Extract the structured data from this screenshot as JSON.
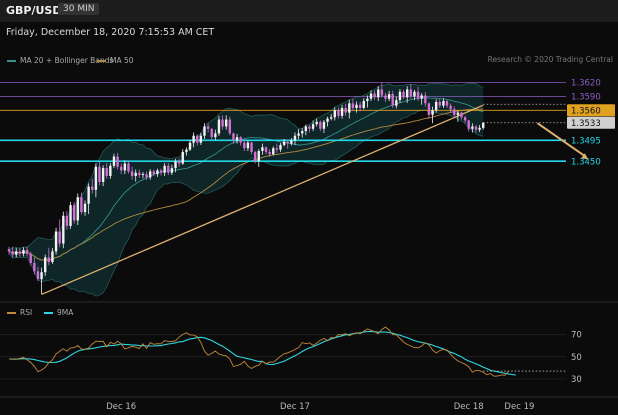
{
  "header": {
    "symbol": "GBP/USD",
    "timeframe": "30 MIN",
    "datetime": "Friday, December 18, 2020 7:15:53 AM CET"
  },
  "legend": {
    "ma_bb": "MA 20 + Bollinger Bands",
    "ma50": "MA 50",
    "rsi": "RSI",
    "ma9": "9MA"
  },
  "credit": "Research © 2020 Trading Central",
  "colors": {
    "bg": "#0b0b0b",
    "up": "#f2f2f2",
    "down": "#d46fd4",
    "bb": "#35908a",
    "ma50": "#b08a3e",
    "trend": "#e0b070",
    "support": "#23d8e8",
    "resistance": "#8a5cc4",
    "pivot": "#e0a020",
    "rsi": "#c2883c",
    "rsi_ma": "#2fd6e0"
  },
  "chart_data": [
    {
      "type": "candlestick",
      "x_ticks": [
        {
          "label": "Dec 16",
          "index": 31
        },
        {
          "label": "Dec 17",
          "index": 79
        },
        {
          "label": "Dec 18",
          "index": 127
        },
        {
          "label": "Dec 19",
          "index": 141
        }
      ],
      "ylim": [
        1.315,
        1.366
      ],
      "levels": [
        {
          "value": 1.362,
          "label": "1.3620",
          "kind": "resistance",
          "color": "#8a5cc4"
        },
        {
          "value": 1.359,
          "label": "1.3590",
          "kind": "resistance",
          "color": "#8a5cc4"
        },
        {
          "value": 1.356,
          "label": "1.3560",
          "kind": "pivot",
          "color": "#e0a020"
        },
        {
          "value": 1.3533,
          "label": "1.3533",
          "kind": "last",
          "color": "#cfcfcf"
        },
        {
          "value": 1.3495,
          "label": "1.3495",
          "kind": "support",
          "color": "#23d8e8"
        },
        {
          "value": 1.345,
          "label": "1.3450",
          "kind": "support",
          "color": "#23d8e8"
        }
      ],
      "trendline": [
        {
          "index": 9,
          "price": 1.3162
        },
        {
          "index": 131,
          "price": 1.3571
        }
      ],
      "arrow": [
        {
          "index": 146,
          "price": 1.3532
        },
        {
          "index": 160,
          "price": 1.3454
        }
      ],
      "candles": [
        [
          1.326,
          1.3265,
          1.3248,
          1.3255
        ],
        [
          1.3255,
          1.3265,
          1.3242,
          1.3248
        ],
        [
          1.3248,
          1.3262,
          1.3242,
          1.3255
        ],
        [
          1.3255,
          1.3262,
          1.3244,
          1.325
        ],
        [
          1.325,
          1.3264,
          1.3244,
          1.3258
        ],
        [
          1.3258,
          1.3266,
          1.3244,
          1.325
        ],
        [
          1.325,
          1.3254,
          1.3225,
          1.323
        ],
        [
          1.323,
          1.3242,
          1.3205,
          1.3212
        ],
        [
          1.3212,
          1.3222,
          1.3191,
          1.3195
        ],
        [
          1.3195,
          1.322,
          1.3163,
          1.321
        ],
        [
          1.321,
          1.3248,
          1.3202,
          1.3242
        ],
        [
          1.3242,
          1.3263,
          1.3225,
          1.3232
        ],
        [
          1.3232,
          1.3262,
          1.3228,
          1.3255
        ],
        [
          1.3255,
          1.3306,
          1.3248,
          1.3298
        ],
        [
          1.3298,
          1.3324,
          1.3264,
          1.3272
        ],
        [
          1.3272,
          1.3341,
          1.3262,
          1.3332
        ],
        [
          1.3332,
          1.3342,
          1.3302,
          1.331
        ],
        [
          1.331,
          1.3362,
          1.3304,
          1.3355
        ],
        [
          1.3355,
          1.3362,
          1.3315,
          1.3322
        ],
        [
          1.3322,
          1.338,
          1.3312,
          1.3372
        ],
        [
          1.3372,
          1.3382,
          1.3335,
          1.334
        ],
        [
          1.334,
          1.3365,
          1.3332,
          1.3358
        ],
        [
          1.3358,
          1.3402,
          1.3336,
          1.3395
        ],
        [
          1.3395,
          1.3412,
          1.338,
          1.3388
        ],
        [
          1.3388,
          1.3445,
          1.3372,
          1.3438
        ],
        [
          1.3438,
          1.3448,
          1.3398,
          1.3405
        ],
        [
          1.3405,
          1.3441,
          1.3396,
          1.3435
        ],
        [
          1.3435,
          1.3446,
          1.3412,
          1.3418
        ],
        [
          1.3418,
          1.3446,
          1.3412,
          1.344
        ],
        [
          1.344,
          1.3466,
          1.3435,
          1.346
        ],
        [
          1.346,
          1.3468,
          1.3432,
          1.3438
        ],
        [
          1.3438,
          1.3445,
          1.3422,
          1.343
        ],
        [
          1.343,
          1.3452,
          1.3422,
          1.3445
        ],
        [
          1.3445,
          1.345,
          1.3423,
          1.3428
        ],
        [
          1.3428,
          1.3438,
          1.341,
          1.3418
        ],
        [
          1.3418,
          1.3432,
          1.3406,
          1.3425
        ],
        [
          1.3425,
          1.3432,
          1.3414,
          1.342
        ],
        [
          1.342,
          1.3427,
          1.3413,
          1.3422
        ],
        [
          1.3422,
          1.3428,
          1.3409,
          1.3415
        ],
        [
          1.3415,
          1.3433,
          1.341,
          1.3428
        ],
        [
          1.3428,
          1.3432,
          1.3418,
          1.3422
        ],
        [
          1.3422,
          1.3434,
          1.3416,
          1.343
        ],
        [
          1.343,
          1.3434,
          1.3419,
          1.3425
        ],
        [
          1.3425,
          1.3446,
          1.3418,
          1.344
        ],
        [
          1.344,
          1.3446,
          1.342,
          1.3425
        ],
        [
          1.3425,
          1.3442,
          1.342,
          1.3435
        ],
        [
          1.3435,
          1.3455,
          1.3426,
          1.345
        ],
        [
          1.345,
          1.3455,
          1.3438,
          1.3445
        ],
        [
          1.3445,
          1.3476,
          1.3442,
          1.347
        ],
        [
          1.347,
          1.348,
          1.3462,
          1.3475
        ],
        [
          1.3475,
          1.3496,
          1.3472,
          1.349
        ],
        [
          1.349,
          1.3512,
          1.348,
          1.3505
        ],
        [
          1.3505,
          1.3508,
          1.3484,
          1.349
        ],
        [
          1.349,
          1.3511,
          1.3485,
          1.3505
        ],
        [
          1.3505,
          1.3532,
          1.3498,
          1.3525
        ],
        [
          1.3525,
          1.3532,
          1.3512,
          1.352
        ],
        [
          1.352,
          1.3521,
          1.3496,
          1.3502
        ],
        [
          1.3502,
          1.3518,
          1.3496,
          1.351
        ],
        [
          1.351,
          1.3548,
          1.3505,
          1.354
        ],
        [
          1.354,
          1.3549,
          1.3518,
          1.3525
        ],
        [
          1.3525,
          1.3549,
          1.3518,
          1.354
        ],
        [
          1.354,
          1.3546,
          1.3506,
          1.351
        ],
        [
          1.351,
          1.3512,
          1.3488,
          1.3495
        ],
        [
          1.3495,
          1.3509,
          1.3488,
          1.3502
        ],
        [
          1.3502,
          1.3504,
          1.3484,
          1.349
        ],
        [
          1.349,
          1.3496,
          1.3472,
          1.3478
        ],
        [
          1.3478,
          1.3495,
          1.3472,
          1.349
        ],
        [
          1.349,
          1.3492,
          1.3465,
          1.347
        ],
        [
          1.347,
          1.3472,
          1.3445,
          1.345
        ],
        [
          1.345,
          1.3476,
          1.3438,
          1.3472
        ],
        [
          1.3472,
          1.3488,
          1.3464,
          1.348
        ],
        [
          1.348,
          1.3482,
          1.3465,
          1.347
        ],
        [
          1.347,
          1.3476,
          1.3459,
          1.3465
        ],
        [
          1.3465,
          1.3482,
          1.3462,
          1.3478
        ],
        [
          1.3478,
          1.3488,
          1.3468,
          1.3475
        ],
        [
          1.3475,
          1.3489,
          1.347,
          1.3485
        ],
        [
          1.3485,
          1.3498,
          1.3482,
          1.3492
        ],
        [
          1.3492,
          1.3494,
          1.3477,
          1.3488
        ],
        [
          1.3488,
          1.35,
          1.3484,
          1.3495
        ],
        [
          1.3495,
          1.3512,
          1.3485,
          1.3505
        ],
        [
          1.3505,
          1.3519,
          1.3498,
          1.351
        ],
        [
          1.351,
          1.3521,
          1.3501,
          1.3515
        ],
        [
          1.3515,
          1.3529,
          1.3506,
          1.3525
        ],
        [
          1.3525,
          1.3528,
          1.3512,
          1.352
        ],
        [
          1.352,
          1.3538,
          1.3515,
          1.353
        ],
        [
          1.353,
          1.3542,
          1.3525,
          1.3535
        ],
        [
          1.3535,
          1.3538,
          1.3515,
          1.352
        ],
        [
          1.352,
          1.3539,
          1.3511,
          1.3535
        ],
        [
          1.3535,
          1.3546,
          1.3525,
          1.3542
        ],
        [
          1.3542,
          1.3552,
          1.3538,
          1.3545
        ],
        [
          1.3545,
          1.3566,
          1.3538,
          1.356
        ],
        [
          1.356,
          1.3566,
          1.3542,
          1.3548
        ],
        [
          1.3548,
          1.3572,
          1.3542,
          1.3565
        ],
        [
          1.3565,
          1.3574,
          1.3548,
          1.3555
        ],
        [
          1.3555,
          1.3583,
          1.3542,
          1.3575
        ],
        [
          1.3575,
          1.3585,
          1.3558,
          1.3565
        ],
        [
          1.3565,
          1.3579,
          1.3555,
          1.3572
        ],
        [
          1.3572,
          1.3578,
          1.3558,
          1.3565
        ],
        [
          1.3565,
          1.3586,
          1.3562,
          1.358
        ],
        [
          1.358,
          1.3592,
          1.3566,
          1.3585
        ],
        [
          1.3585,
          1.3603,
          1.358,
          1.3596
        ],
        [
          1.3596,
          1.3603,
          1.3582,
          1.3588
        ],
        [
          1.3588,
          1.3612,
          1.358,
          1.3605
        ],
        [
          1.3605,
          1.362,
          1.3588,
          1.3592
        ],
        [
          1.3592,
          1.3598,
          1.3578,
          1.3585
        ],
        [
          1.3585,
          1.3602,
          1.358,
          1.3595
        ],
        [
          1.3595,
          1.3602,
          1.3565,
          1.357
        ],
        [
          1.357,
          1.3589,
          1.3564,
          1.3582
        ],
        [
          1.3582,
          1.3606,
          1.3576,
          1.36
        ],
        [
          1.36,
          1.3604,
          1.3584,
          1.3588
        ],
        [
          1.3588,
          1.3612,
          1.3576,
          1.3605
        ],
        [
          1.3605,
          1.3617,
          1.3585,
          1.359
        ],
        [
          1.359,
          1.3604,
          1.3582,
          1.36
        ],
        [
          1.36,
          1.3611,
          1.358,
          1.3585
        ],
        [
          1.3585,
          1.3597,
          1.3572,
          1.3592
        ],
        [
          1.3592,
          1.3599,
          1.3568,
          1.3575
        ],
        [
          1.3575,
          1.3577,
          1.3542,
          1.355
        ],
        [
          1.355,
          1.3568,
          1.3532,
          1.356
        ],
        [
          1.356,
          1.3584,
          1.3555,
          1.3578
        ],
        [
          1.3578,
          1.3585,
          1.3565,
          1.357
        ],
        [
          1.357,
          1.3586,
          1.3565,
          1.358
        ],
        [
          1.358,
          1.3582,
          1.3565,
          1.357
        ],
        [
          1.357,
          1.3575,
          1.3555,
          1.3562
        ],
        [
          1.3562,
          1.3568,
          1.3545,
          1.355
        ],
        [
          1.355,
          1.3559,
          1.3535,
          1.3555
        ],
        [
          1.3555,
          1.3557,
          1.354,
          1.3545
        ],
        [
          1.3545,
          1.3548,
          1.3532,
          1.3538
        ],
        [
          1.3538,
          1.3539,
          1.3514,
          1.352
        ],
        [
          1.352,
          1.3532,
          1.3512,
          1.3525
        ],
        [
          1.3525,
          1.3528,
          1.3512,
          1.3518
        ],
        [
          1.3518,
          1.3528,
          1.3513,
          1.3522
        ],
        [
          1.3522,
          1.3534,
          1.3518,
          1.3533
        ]
      ]
    },
    {
      "type": "line",
      "name_rsi": "RSI",
      "name_ma": "9MA",
      "ylim": [
        20,
        85
      ],
      "y_ticks": [
        70,
        50,
        30
      ],
      "rsi_values": [
        48.0,
        47.8,
        47.7,
        48.5,
        49.4,
        47.2,
        44.9,
        41.5,
        36.5,
        38.1,
        40.4,
        44.7,
        47.1,
        52.6,
        54.9,
        57.2,
        55.0,
        58.0,
        58.3,
        60.2,
        56.9,
        56.8,
        57.8,
        61.5,
        64.1,
        63.8,
        64.1,
        59.0,
        63.1,
        61.4,
        64.0,
        61.7,
        57.2,
        58.1,
        59.4,
        58.6,
        57.4,
        61.7,
        57.6,
        62.7,
        61.3,
        61.8,
        61.7,
        64.6,
        63.9,
        63.8,
        64.4,
        67.7,
        70.2,
        71.7,
        69.7,
        69.6,
        68.1,
        62.8,
        55.1,
        51.4,
        53.1,
        55.2,
        52.4,
        51.4,
        50.9,
        48.0,
        41.2,
        42.1,
        43.2,
        45.9,
        41.7,
        39.4,
        41.4,
        42.4,
        45.9,
        43.6,
        45.3,
        45.1,
        47.6,
        50.4,
        52.7,
        53.6,
        54.9,
        56.6,
        58.2,
        62.8,
        61.8,
        62.6,
        60.3,
        62.3,
        65.0,
        66.6,
        64.5,
        67.6,
        67.1,
        70.0,
        69.8,
        70.9,
        68.8,
        70.6,
        71.7,
        70.7,
        73.1,
        75.1,
        73.9,
        72.7,
        70.7,
        74.7,
        76.8,
        74.2,
        69.9,
        69.8,
        66.5,
        63.2,
        61.2,
        59.7,
        58.3,
        58.1,
        59.6,
        62.6,
        60.7,
        56.1,
        53.4,
        55.6,
        56.7,
        56.1,
        52.3,
        48.8,
        46.3,
        44.7,
        43.3,
        41.0,
        36.1,
        37.7,
        37.4,
        35.9,
        33.9,
        34.8,
        32.5,
        32.6,
        33.6,
        33.3,
        37.1
      ],
      "ma_values": [
        48.0,
        47.9,
        47.9,
        48.1,
        48.3,
        48.2,
        47.9,
        47.4,
        46.6,
        45.9,
        45.3,
        44.9,
        44.8,
        45.0,
        45.9,
        47.4,
        49.0,
        51.2,
        53.2,
        55.1,
        56.0,
        56.7,
        57.1,
        57.6,
        58.1,
        58.8,
        59.4,
        59.8,
        60.1,
        60.2,
        60.8,
        61.5,
        61.2,
        60.9,
        60.6,
        60.5,
        60.2,
        60.1,
        59.7,
        59.7,
        59.7,
        60.0,
        60.1,
        60.9,
        61.5,
        62.0,
        62.6,
        63.4,
        63.7,
        65.0,
        66.1,
        66.6,
        67.3,
        67.6,
        67.1,
        65.9,
        64.7,
        62.9,
        61.1,
        59.5,
        57.4,
        55.1,
        52.7,
        50.5,
        49.7,
        49.0,
        48.3,
        47.5,
        46.5,
        45.8,
        45.9,
        43.8,
        43.0,
        43.1,
        43.9,
        44.9,
        46.0,
        47.6,
        49.3,
        51.0,
        52.7,
        54.8,
        56.6,
        58.0,
        59.2,
        60.5,
        62.0,
        63.7,
        64.9,
        66.0,
        67.1,
        68.1,
        68.9,
        69.8,
        70.2,
        70.7,
        71.3,
        71.6,
        72.3,
        72.8,
        72.7,
        72.6,
        72.2,
        72.3,
        72.4,
        71.9,
        71.3,
        70.2,
        69.5,
        68.3,
        67.3,
        65.9,
        64.6,
        63.7,
        63.0,
        62.3,
        61.5,
        60.5,
        59.3,
        58.2,
        57.1,
        55.6,
        54.1,
        53.0,
        51.4,
        49.9,
        47.7,
        46.2,
        44.9,
        43.6,
        42.2,
        40.7,
        39.3,
        37.8,
        37.1,
        36.4,
        35.8,
        35.1,
        34.5,
        33.9,
        33.6
      ]
    }
  ]
}
